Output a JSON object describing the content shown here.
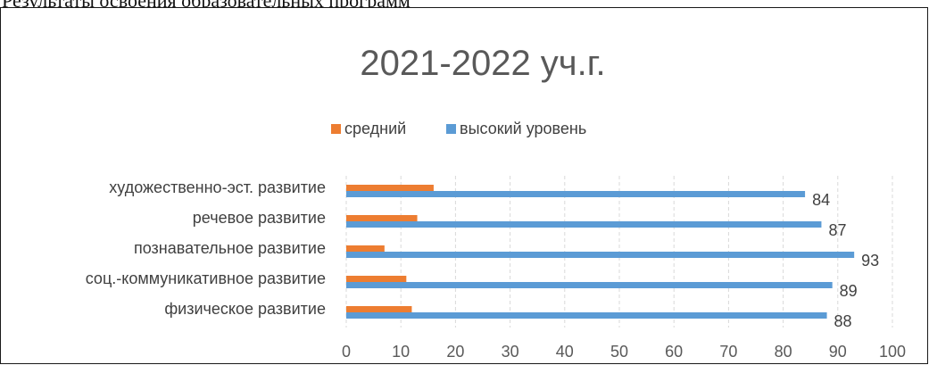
{
  "document": {
    "heading": "Результаты освоения образовательных программ"
  },
  "chart_data": {
    "type": "bar",
    "orientation": "horizontal",
    "title": "2021-2022 уч.г.",
    "categories": [
      "физическое развитие",
      "соц.-коммуникативное развитие",
      "познавательное развитие",
      "речевое развитие",
      "художественно-эст. развитие"
    ],
    "series": [
      {
        "name": "высокий уровень",
        "color": "#5B9BD5",
        "values": [
          88,
          89,
          93,
          87,
          84
        ],
        "show_labels": true
      },
      {
        "name": "средний",
        "color": "#ED7D31",
        "values": [
          12,
          11,
          7,
          13,
          16
        ],
        "show_labels": false
      }
    ],
    "legend_order": [
      "средний",
      "высокий уровень"
    ],
    "legend_position": "top",
    "xlim": [
      0,
      100
    ],
    "xticks": [
      0,
      10,
      20,
      30,
      40,
      50,
      60,
      70,
      80,
      90,
      100
    ],
    "grid": "vertical dashed",
    "xlabel": "",
    "ylabel": ""
  }
}
